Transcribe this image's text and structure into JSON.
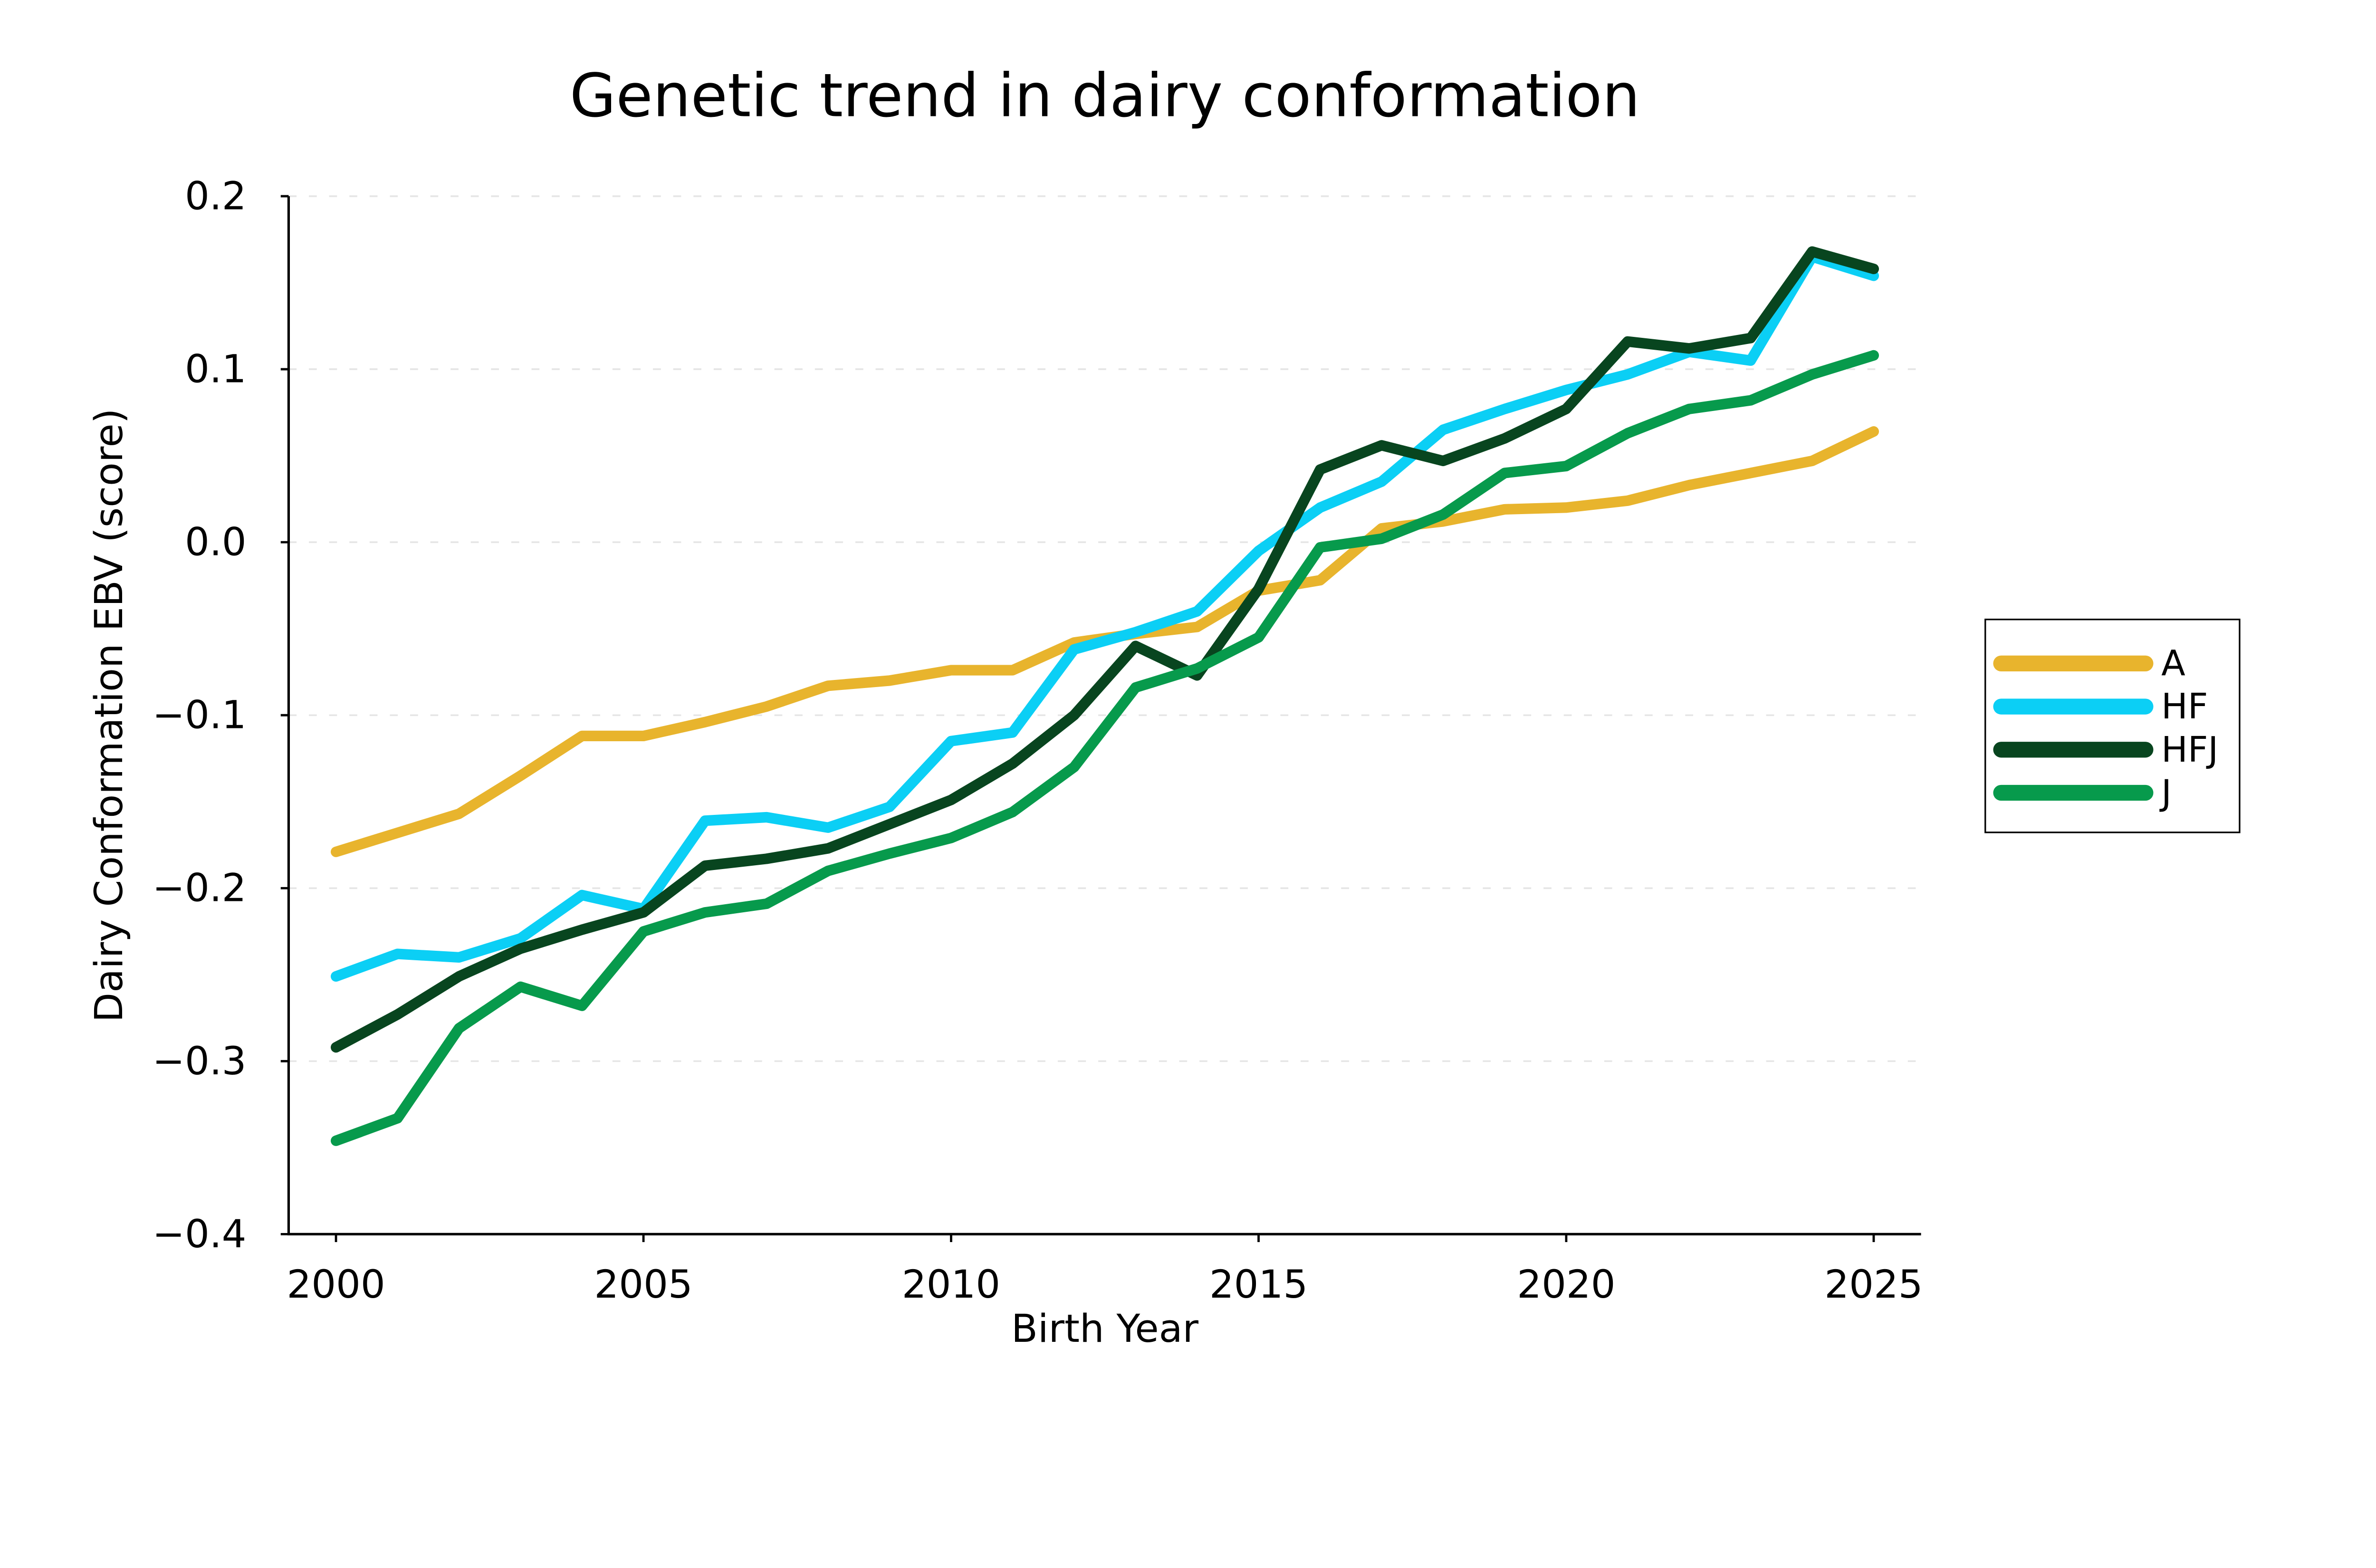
{
  "figure": {
    "background": "#ffffff"
  },
  "chart_data": {
    "type": "line",
    "title": "Genetic trend in dairy conformation",
    "xlabel": "Birth Year",
    "ylabel": "Dairy Conformation EBV (score)",
    "xlim": [
      1999.23,
      2025.77
    ],
    "ylim": [
      -0.4,
      0.2
    ],
    "grid": {
      "axis": "y",
      "style": "dashed",
      "color": "#e6e6e6"
    },
    "legend": {
      "position": "center right",
      "border_color": "#000000"
    },
    "xticks": {
      "values": [
        2000,
        2005,
        2010,
        2015,
        2020,
        2025
      ],
      "labels": [
        "2000",
        "2005",
        "2010",
        "2015",
        "2020",
        "2025"
      ]
    },
    "yticks": {
      "values": [
        0.2,
        0.1,
        0.0,
        -0.1,
        -0.2,
        -0.3,
        -0.4
      ],
      "labels": [
        "0.2",
        "0.1",
        "0.0",
        "−0.1",
        "−0.2",
        "−0.3",
        "−0.4"
      ]
    },
    "x": [
      2000,
      2001,
      2002,
      2003,
      2004,
      2005,
      2006,
      2007,
      2008,
      2009,
      2010,
      2011,
      2012,
      2013,
      2014,
      2015,
      2016,
      2017,
      2018,
      2019,
      2020,
      2021,
      2022,
      2023,
      2024,
      2025
    ],
    "series": [
      {
        "name": "A",
        "color": "#e8b42d",
        "values": [
          -0.179,
          -0.168,
          -0.157,
          -0.135,
          -0.112,
          -0.112,
          -0.104,
          -0.095,
          -0.083,
          -0.08,
          -0.074,
          -0.074,
          -0.058,
          -0.053,
          -0.049,
          -0.028,
          -0.022,
          0.008,
          0.012,
          0.019,
          0.02,
          0.024,
          0.033,
          0.04,
          0.047,
          0.064
        ]
      },
      {
        "name": "HF",
        "color": "#0bcff5",
        "values": [
          -0.251,
          -0.238,
          -0.24,
          -0.229,
          -0.204,
          -0.212,
          -0.161,
          -0.159,
          -0.165,
          -0.153,
          -0.115,
          -0.11,
          -0.062,
          -0.052,
          -0.04,
          -0.005,
          0.02,
          0.035,
          0.065,
          0.077,
          0.088,
          0.097,
          0.11,
          0.105,
          0.165,
          0.154
        ]
      },
      {
        "name": "HFJ",
        "color": "#08451f",
        "values": [
          -0.292,
          -0.273,
          -0.251,
          -0.235,
          -0.224,
          -0.214,
          -0.187,
          -0.183,
          -0.177,
          -0.163,
          -0.149,
          -0.128,
          -0.1,
          -0.06,
          -0.077,
          -0.027,
          0.042,
          0.056,
          0.047,
          0.06,
          0.077,
          0.116,
          0.112,
          0.118,
          0.168,
          0.158
        ]
      },
      {
        "name": "J",
        "color": "#079a4c",
        "values": [
          -0.346,
          -0.333,
          -0.281,
          -0.257,
          -0.268,
          -0.225,
          -0.214,
          -0.209,
          -0.19,
          -0.18,
          -0.171,
          -0.156,
          -0.13,
          -0.084,
          -0.073,
          -0.055,
          -0.003,
          0.002,
          0.016,
          0.04,
          0.044,
          0.063,
          0.077,
          0.082,
          0.097,
          0.108
        ]
      }
    ]
  }
}
